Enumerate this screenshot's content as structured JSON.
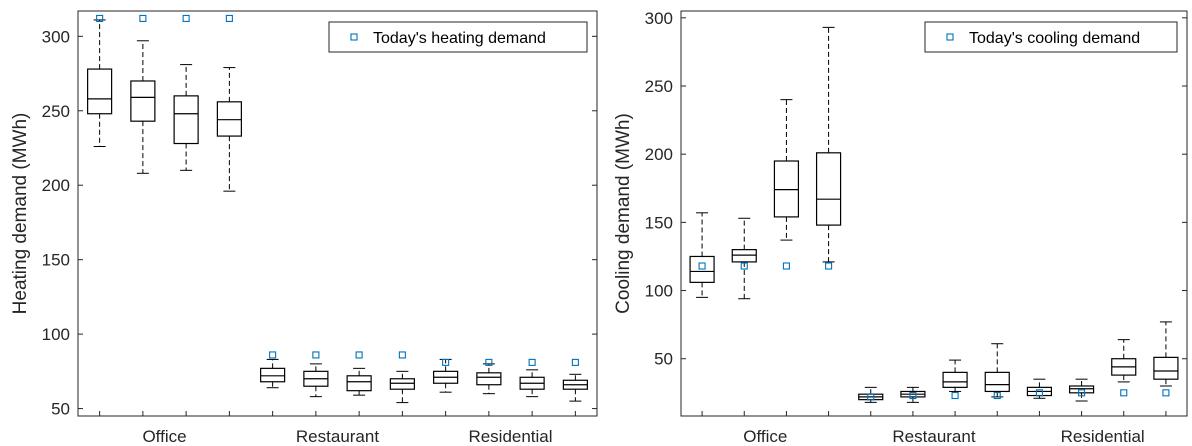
{
  "colors": {
    "axis": "#262626",
    "box": "#000000",
    "marker": "#0072BD",
    "background": "#ffffff"
  },
  "chart_data": [
    {
      "type": "boxplot",
      "ylabel": "Heating demand (MWh)",
      "ylim": [
        45,
        317
      ],
      "yticks": [
        50,
        100,
        150,
        200,
        250,
        300
      ],
      "categories": [
        "Office",
        "Restaurant",
        "Residential"
      ],
      "category_positions": [
        2.5,
        6.5,
        10.5
      ],
      "legend": {
        "label": "Today's heating demand",
        "position": "top-right"
      },
      "boxes": [
        {
          "x": 1,
          "whisker_low": 226,
          "q1": 248,
          "median": 258,
          "q3": 278,
          "whisker_high": 311
        },
        {
          "x": 2,
          "whisker_low": 208,
          "q1": 243,
          "median": 259,
          "q3": 270,
          "whisker_high": 297
        },
        {
          "x": 3,
          "whisker_low": 210,
          "q1": 228,
          "median": 248,
          "q3": 260,
          "whisker_high": 281
        },
        {
          "x": 4,
          "whisker_low": 196,
          "q1": 233,
          "median": 244,
          "q3": 256,
          "whisker_high": 279
        },
        {
          "x": 5,
          "whisker_low": 64,
          "q1": 68,
          "median": 72,
          "q3": 77,
          "whisker_high": 83
        },
        {
          "x": 6,
          "whisker_low": 58,
          "q1": 65,
          "median": 70,
          "q3": 75,
          "whisker_high": 80
        },
        {
          "x": 7,
          "whisker_low": 59,
          "q1": 62,
          "median": 68,
          "q3": 72,
          "whisker_high": 77
        },
        {
          "x": 8,
          "whisker_low": 54,
          "q1": 63,
          "median": 67,
          "q3": 70,
          "whisker_high": 75
        },
        {
          "x": 9,
          "whisker_low": 61,
          "q1": 67,
          "median": 71,
          "q3": 75,
          "whisker_high": 83
        },
        {
          "x": 10,
          "whisker_low": 60,
          "q1": 66,
          "median": 71,
          "q3": 74,
          "whisker_high": 80
        },
        {
          "x": 11,
          "whisker_low": 58,
          "q1": 63,
          "median": 67,
          "q3": 71,
          "whisker_high": 76
        },
        {
          "x": 12,
          "whisker_low": 55,
          "q1": 63,
          "median": 66,
          "q3": 69,
          "whisker_high": 73
        }
      ],
      "markers": [
        {
          "x": 1,
          "y": 312
        },
        {
          "x": 2,
          "y": 312
        },
        {
          "x": 3,
          "y": 312
        },
        {
          "x": 4,
          "y": 312
        },
        {
          "x": 5,
          "y": 86
        },
        {
          "x": 6,
          "y": 86
        },
        {
          "x": 7,
          "y": 86
        },
        {
          "x": 8,
          "y": 86
        },
        {
          "x": 9,
          "y": 81
        },
        {
          "x": 10,
          "y": 81
        },
        {
          "x": 11,
          "y": 81
        },
        {
          "x": 12,
          "y": 81
        }
      ]
    },
    {
      "type": "boxplot",
      "ylabel": "Cooling demand (MWh)",
      "ylim": [
        8,
        305
      ],
      "yticks": [
        50,
        100,
        150,
        200,
        250,
        300
      ],
      "categories": [
        "Office",
        "Restaurant",
        "Residential"
      ],
      "category_positions": [
        2.5,
        6.5,
        10.5
      ],
      "legend": {
        "label": "Today's cooling demand",
        "position": "top-right"
      },
      "boxes": [
        {
          "x": 1,
          "whisker_low": 95,
          "q1": 106,
          "median": 114,
          "q3": 125,
          "whisker_high": 157
        },
        {
          "x": 2,
          "whisker_low": 94,
          "q1": 121,
          "median": 126,
          "q3": 130,
          "whisker_high": 153
        },
        {
          "x": 3,
          "whisker_low": 137,
          "q1": 154,
          "median": 174,
          "q3": 195,
          "whisker_high": 240
        },
        {
          "x": 4,
          "whisker_low": 121,
          "q1": 148,
          "median": 167,
          "q3": 201,
          "whisker_high": 293
        },
        {
          "x": 5,
          "whisker_low": 18,
          "q1": 20,
          "median": 22,
          "q3": 24,
          "whisker_high": 29
        },
        {
          "x": 6,
          "whisker_low": 18,
          "q1": 22,
          "median": 24,
          "q3": 26,
          "whisker_high": 29
        },
        {
          "x": 7,
          "whisker_low": 26,
          "q1": 29,
          "median": 33,
          "q3": 40,
          "whisker_high": 49
        },
        {
          "x": 8,
          "whisker_low": 22,
          "q1": 26,
          "median": 31,
          "q3": 40,
          "whisker_high": 61
        },
        {
          "x": 9,
          "whisker_low": 21,
          "q1": 23,
          "median": 26,
          "q3": 29,
          "whisker_high": 35
        },
        {
          "x": 10,
          "whisker_low": 19,
          "q1": 25,
          "median": 28,
          "q3": 30,
          "whisker_high": 35
        },
        {
          "x": 11,
          "whisker_low": 33,
          "q1": 38,
          "median": 44,
          "q3": 50,
          "whisker_high": 64
        },
        {
          "x": 12,
          "whisker_low": 30,
          "q1": 35,
          "median": 41,
          "q3": 51,
          "whisker_high": 77
        }
      ],
      "markers": [
        {
          "x": 1,
          "y": 118
        },
        {
          "x": 2,
          "y": 118
        },
        {
          "x": 3,
          "y": 118
        },
        {
          "x": 4,
          "y": 118
        },
        {
          "x": 5,
          "y": 22
        },
        {
          "x": 6,
          "y": 23
        },
        {
          "x": 7,
          "y": 23
        },
        {
          "x": 8,
          "y": 23
        },
        {
          "x": 9,
          "y": 25
        },
        {
          "x": 10,
          "y": 25
        },
        {
          "x": 11,
          "y": 25
        },
        {
          "x": 12,
          "y": 25
        }
      ]
    }
  ]
}
